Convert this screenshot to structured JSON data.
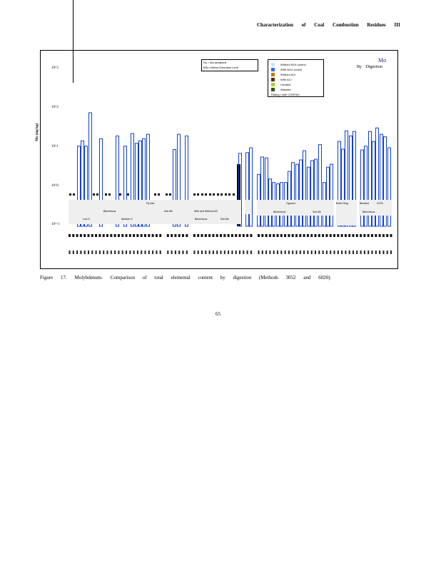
{
  "header": {
    "running_title": "Characterization of Coal Combustion Residues III"
  },
  "figure": {
    "element": "Mo",
    "subtitle": "By Digestion",
    "caption": "Figure 17. Molybdenum. Comparison of total elemental content by digestion (Methods 3052 and 6020).",
    "legend_notes": [
      "No • Not analyzed",
      "BDL• Below Detection Limit"
    ],
    "legend": [
      {
        "label": "Without NOx control",
        "color": "#c4e4f8"
      },
      {
        "label": "With NOx control",
        "color": "#3a66ee"
      },
      {
        "label": "Without ACI",
        "color": "#c07a00"
      },
      {
        "label": "With ACI",
        "color": "#5a2a00"
      },
      {
        "label": "Unrated",
        "color": "#a6d422"
      },
      {
        "label": "Washed",
        "color": "#2f5a0a"
      },
      {
        "label": "Rating • with COHPAC",
        "color": ""
      }
    ],
    "groups": [
      "Fly Ash",
      "Bituminous",
      "Sub-Bit",
      "Low S",
      "Medium S",
      "With and Without ACI",
      "Bituminous",
      "Sub-Bit",
      "Gypsum",
      "Bituminous",
      "Sub-Bit",
      "Boiler Slag",
      "Blended CCPs",
      "Bituminous"
    ]
  },
  "chart_data": {
    "type": "bar",
    "title": "Mo",
    "subtitle": "By Digestion",
    "ylabel": "Mo (mg/kg)",
    "yscale": "log",
    "ylim": [
      0.1,
      1000
    ],
    "yticks": [
      "10^-1",
      "10^0",
      "10^1",
      "10^2",
      "10^3"
    ],
    "bar_color": "#1040d8",
    "values": [
      11,
      15,
      11,
      78,
      17,
      20,
      11,
      23,
      13,
      15,
      17,
      22,
      9,
      22,
      20,
      3.8,
      7.2,
      7.5,
      10,
      2.1,
      5.8,
      5.5,
      1.6,
      1.3,
      1.2,
      1.3,
      1.3,
      2.5,
      4.2,
      3.8,
      4.9,
      8.4,
      3.2,
      4.7,
      5.1,
      12,
      1.3,
      3.2,
      3.8,
      14.5,
      9.2,
      27,
      20,
      26,
      8.8,
      11,
      26,
      14.5,
      32,
      22,
      19,
      10
    ]
  },
  "page_number": "65"
}
